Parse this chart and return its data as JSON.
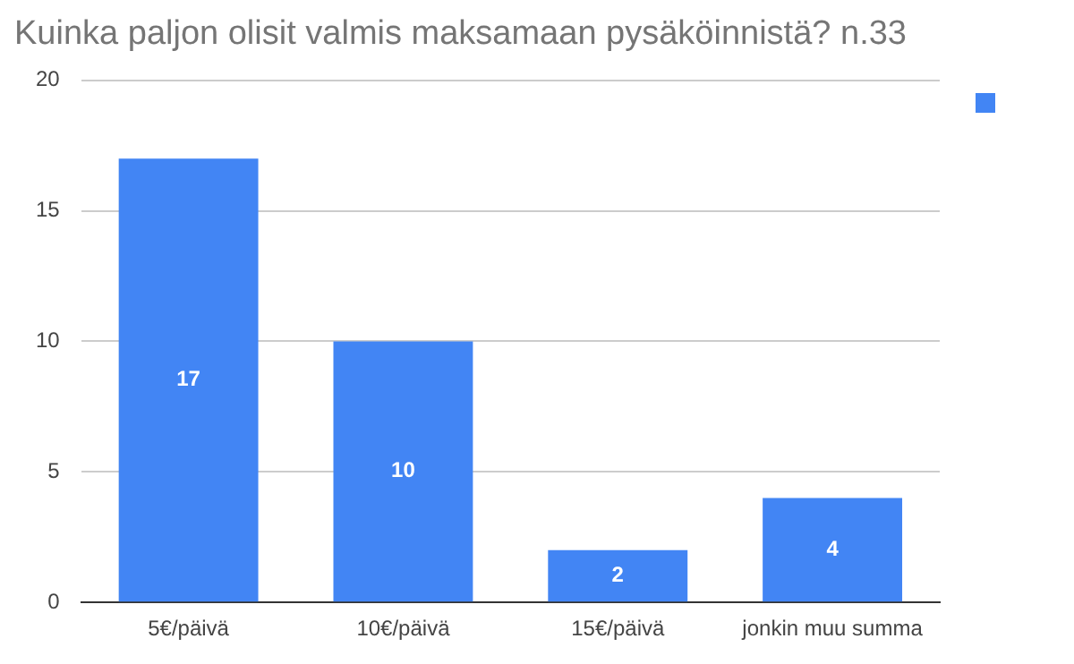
{
  "chart_data": {
    "type": "bar",
    "title": "Kuinka paljon olisit valmis maksamaan pysäköinnistä? n.33",
    "categories": [
      "5€/päivä",
      "10€/päivä",
      "15€/päivä",
      "jonkin muu summa"
    ],
    "series": [
      {
        "color": "#4285f4",
        "values": [
          17,
          10,
          2,
          4
        ]
      }
    ],
    "ylim": [
      0,
      20
    ],
    "yticks": [
      0,
      5,
      10,
      15,
      20
    ],
    "grid": "y",
    "data_labels": true
  }
}
